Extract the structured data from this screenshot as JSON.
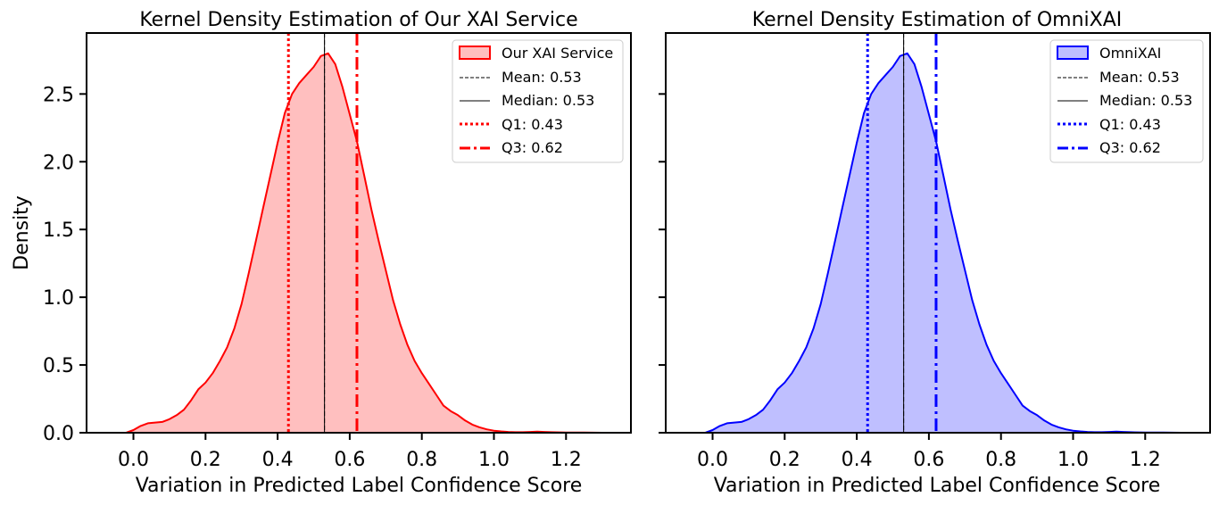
{
  "figure": {
    "type": "kde-comparison",
    "shared_y_axis": true
  },
  "chart_data": [
    {
      "type": "area",
      "title": "Kernel Density Estimation of Our XAI Service",
      "xlabel": "Variation in Predicted Label Confidence Score",
      "ylabel": "Density",
      "xlim": [
        -0.13,
        1.38
      ],
      "ylim": [
        0,
        2.95
      ],
      "x_ticks": [
        0.0,
        0.2,
        0.4,
        0.6,
        0.8,
        1.0,
        1.2
      ],
      "x_tick_labels": [
        "0.0",
        "0.2",
        "0.4",
        "0.6",
        "0.8",
        "1.0",
        "1.2"
      ],
      "y_ticks": [
        0.0,
        0.5,
        1.0,
        1.5,
        2.0,
        2.5
      ],
      "y_tick_labels": [
        "0.0",
        "0.5",
        "1.0",
        "1.5",
        "2.0",
        "2.5"
      ],
      "show_y_tick_labels": true,
      "color": "#ff0000",
      "fill_color": "#ffbfbf",
      "series": [
        {
          "name": "Our XAI Service",
          "x": [
            -0.02,
            0.0,
            0.02,
            0.04,
            0.06,
            0.08,
            0.1,
            0.12,
            0.14,
            0.16,
            0.18,
            0.2,
            0.22,
            0.24,
            0.26,
            0.28,
            0.3,
            0.32,
            0.34,
            0.36,
            0.38,
            0.4,
            0.42,
            0.44,
            0.46,
            0.48,
            0.5,
            0.52,
            0.54,
            0.56,
            0.58,
            0.6,
            0.62,
            0.64,
            0.66,
            0.68,
            0.7,
            0.72,
            0.74,
            0.76,
            0.78,
            0.8,
            0.82,
            0.84,
            0.86,
            0.88,
            0.9,
            0.92,
            0.94,
            0.96,
            0.98,
            1.0,
            1.02,
            1.04,
            1.06,
            1.08,
            1.1,
            1.12,
            1.14,
            1.16,
            1.2,
            1.25,
            1.3
          ],
          "y": [
            0.0,
            0.02,
            0.05,
            0.07,
            0.075,
            0.08,
            0.1,
            0.13,
            0.17,
            0.24,
            0.32,
            0.37,
            0.44,
            0.53,
            0.63,
            0.77,
            0.95,
            1.18,
            1.42,
            1.66,
            1.9,
            2.14,
            2.36,
            2.5,
            2.58,
            2.64,
            2.7,
            2.78,
            2.8,
            2.72,
            2.55,
            2.35,
            2.15,
            1.9,
            1.65,
            1.42,
            1.2,
            0.98,
            0.8,
            0.65,
            0.53,
            0.44,
            0.36,
            0.28,
            0.2,
            0.16,
            0.13,
            0.09,
            0.06,
            0.04,
            0.025,
            0.015,
            0.01,
            0.006,
            0.004,
            0.004,
            0.006,
            0.008,
            0.006,
            0.004,
            0.002,
            0.001,
            0.0
          ]
        }
      ],
      "reference_lines": [
        {
          "name": "Mean",
          "x": 0.53,
          "style": "dashed",
          "color": "#000000",
          "width": 1
        },
        {
          "name": "Median",
          "x": 0.53,
          "style": "solid",
          "color": "#000000",
          "width": 1
        },
        {
          "name": "Q1",
          "x": 0.43,
          "style": "dotted",
          "color": "#ff0000",
          "width": 3
        },
        {
          "name": "Q3",
          "x": 0.62,
          "style": "dashdot",
          "color": "#ff0000",
          "width": 3
        }
      ],
      "legend": {
        "placement": "top-right",
        "entries": [
          "Our XAI Service",
          "Mean: 0.53",
          "Median: 0.53",
          "Q1: 0.43",
          "Q3: 0.62"
        ]
      }
    },
    {
      "type": "area",
      "title": "Kernel Density Estimation of OmniXAI",
      "xlabel": "Variation in Predicted Label Confidence Score",
      "ylabel": "",
      "xlim": [
        -0.13,
        1.38
      ],
      "ylim": [
        0,
        2.95
      ],
      "x_ticks": [
        0.0,
        0.2,
        0.4,
        0.6,
        0.8,
        1.0,
        1.2
      ],
      "x_tick_labels": [
        "0.0",
        "0.2",
        "0.4",
        "0.6",
        "0.8",
        "1.0",
        "1.2"
      ],
      "y_ticks": [
        0.0,
        0.5,
        1.0,
        1.5,
        2.0,
        2.5
      ],
      "y_tick_labels": [
        "",
        "",
        "",
        "",
        "",
        ""
      ],
      "show_y_tick_labels": false,
      "color": "#0000ff",
      "fill_color": "#bfbfff",
      "series": [
        {
          "name": "OmniXAI",
          "x": [
            -0.02,
            0.0,
            0.02,
            0.04,
            0.06,
            0.08,
            0.1,
            0.12,
            0.14,
            0.16,
            0.18,
            0.2,
            0.22,
            0.24,
            0.26,
            0.28,
            0.3,
            0.32,
            0.34,
            0.36,
            0.38,
            0.4,
            0.42,
            0.44,
            0.46,
            0.48,
            0.5,
            0.52,
            0.54,
            0.56,
            0.58,
            0.6,
            0.62,
            0.64,
            0.66,
            0.68,
            0.7,
            0.72,
            0.74,
            0.76,
            0.78,
            0.8,
            0.82,
            0.84,
            0.86,
            0.88,
            0.9,
            0.92,
            0.94,
            0.96,
            0.98,
            1.0,
            1.02,
            1.04,
            1.06,
            1.08,
            1.1,
            1.12,
            1.14,
            1.16,
            1.2,
            1.25,
            1.3
          ],
          "y": [
            0.0,
            0.02,
            0.05,
            0.07,
            0.075,
            0.08,
            0.1,
            0.13,
            0.17,
            0.24,
            0.32,
            0.37,
            0.44,
            0.53,
            0.63,
            0.77,
            0.95,
            1.18,
            1.42,
            1.66,
            1.9,
            2.14,
            2.36,
            2.5,
            2.58,
            2.64,
            2.7,
            2.78,
            2.8,
            2.72,
            2.55,
            2.35,
            2.15,
            1.9,
            1.65,
            1.42,
            1.2,
            0.98,
            0.8,
            0.65,
            0.53,
            0.44,
            0.36,
            0.28,
            0.2,
            0.16,
            0.13,
            0.09,
            0.06,
            0.04,
            0.025,
            0.015,
            0.01,
            0.006,
            0.004,
            0.004,
            0.006,
            0.008,
            0.006,
            0.004,
            0.002,
            0.001,
            0.0
          ]
        }
      ],
      "reference_lines": [
        {
          "name": "Mean",
          "x": 0.53,
          "style": "dashed",
          "color": "#000000",
          "width": 1
        },
        {
          "name": "Median",
          "x": 0.53,
          "style": "solid",
          "color": "#000000",
          "width": 1
        },
        {
          "name": "Q1",
          "x": 0.43,
          "style": "dotted",
          "color": "#0000ff",
          "width": 3
        },
        {
          "name": "Q3",
          "x": 0.62,
          "style": "dashdot",
          "color": "#0000ff",
          "width": 3
        }
      ],
      "legend": {
        "placement": "top-right",
        "entries": [
          "OmniXAI",
          "Mean: 0.53",
          "Median: 0.53",
          "Q1: 0.43",
          "Q3: 0.62"
        ]
      }
    }
  ]
}
